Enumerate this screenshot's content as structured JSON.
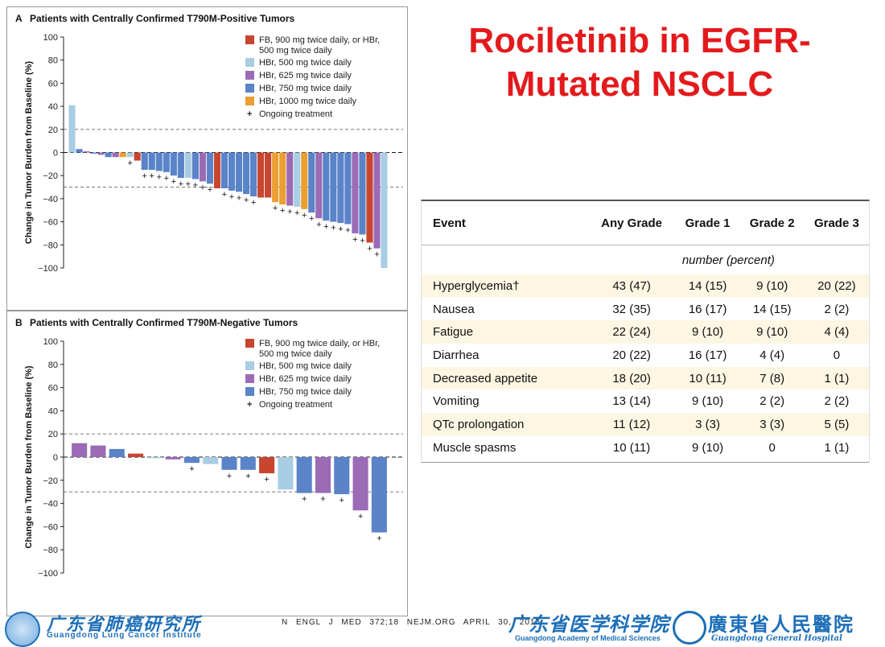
{
  "slide": {
    "title": "Rociletinib in EGFR-Mutated NSCLC"
  },
  "legend_colors": {
    "FB900": "#c8452f",
    "HBr500": "#a9cde3",
    "HBr625": "#9b6bb5",
    "HBr750": "#5a83c8",
    "HBr1000": "#eb9f32"
  },
  "chart_data": [
    {
      "type": "bar",
      "panel_letter": "A",
      "title": "Patients with Centrally Confirmed T790M-Positive Tumors",
      "ylabel": "Change in Tumor Burden from Baseline (%)",
      "ylim": [
        -100,
        100
      ],
      "yticks": [
        "100",
        "80",
        "60",
        "40",
        "20",
        "0",
        "−20",
        "−40",
        "−60",
        "−80",
        "−100"
      ],
      "reference_lines": [
        20,
        -30
      ],
      "legend": [
        {
          "key": "FB900",
          "label": "FB, 900 mg twice daily, or HBr,",
          "label2": "500 mg twice daily"
        },
        {
          "key": "HBr500",
          "label": "HBr, 500 mg twice daily",
          "label2": ""
        },
        {
          "key": "HBr625",
          "label": "HBr, 625 mg twice daily",
          "label2": ""
        },
        {
          "key": "HBr750",
          "label": "HBr, 750 mg twice daily",
          "label2": ""
        },
        {
          "key": "HBr1000",
          "label": "HBr, 1000 mg twice daily",
          "label2": ""
        }
      ],
      "ongoing_label": "Ongoing treatment",
      "ongoing_symbol": "+",
      "bars": [
        {
          "value": 41,
          "group": "HBr500",
          "ongoing": false
        },
        {
          "value": 3,
          "group": "HBr750",
          "ongoing": false
        },
        {
          "value": 1,
          "group": "HBr625",
          "ongoing": false
        },
        {
          "value": -1,
          "group": "HBr750",
          "ongoing": false
        },
        {
          "value": -2,
          "group": "HBr625",
          "ongoing": false
        },
        {
          "value": -4,
          "group": "HBr750",
          "ongoing": false
        },
        {
          "value": -4,
          "group": "HBr625",
          "ongoing": false
        },
        {
          "value": -4,
          "group": "HBr1000",
          "ongoing": false
        },
        {
          "value": -4,
          "group": "HBr500",
          "ongoing": true
        },
        {
          "value": -7,
          "group": "FB900",
          "ongoing": false
        },
        {
          "value": -15,
          "group": "HBr750",
          "ongoing": true
        },
        {
          "value": -15,
          "group": "HBr750",
          "ongoing": true
        },
        {
          "value": -16,
          "group": "HBr750",
          "ongoing": true
        },
        {
          "value": -17,
          "group": "HBr750",
          "ongoing": true
        },
        {
          "value": -20,
          "group": "HBr750",
          "ongoing": true
        },
        {
          "value": -22,
          "group": "HBr750",
          "ongoing": true
        },
        {
          "value": -22,
          "group": "HBr500",
          "ongoing": true
        },
        {
          "value": -23,
          "group": "HBr750",
          "ongoing": true
        },
        {
          "value": -25,
          "group": "HBr625",
          "ongoing": true
        },
        {
          "value": -27,
          "group": "HBr750",
          "ongoing": true
        },
        {
          "value": -31,
          "group": "FB900",
          "ongoing": false
        },
        {
          "value": -31,
          "group": "HBr750",
          "ongoing": true
        },
        {
          "value": -33,
          "group": "HBr750",
          "ongoing": true
        },
        {
          "value": -34,
          "group": "HBr750",
          "ongoing": true
        },
        {
          "value": -36,
          "group": "HBr750",
          "ongoing": true
        },
        {
          "value": -38,
          "group": "HBr750",
          "ongoing": true
        },
        {
          "value": -39,
          "group": "FB900",
          "ongoing": false
        },
        {
          "value": -39,
          "group": "FB900",
          "ongoing": false
        },
        {
          "value": -43,
          "group": "HBr1000",
          "ongoing": true
        },
        {
          "value": -45,
          "group": "HBr1000",
          "ongoing": true
        },
        {
          "value": -46,
          "group": "HBr625",
          "ongoing": true
        },
        {
          "value": -47,
          "group": "HBr500",
          "ongoing": true
        },
        {
          "value": -49,
          "group": "HBr1000",
          "ongoing": true
        },
        {
          "value": -52,
          "group": "HBr750",
          "ongoing": true
        },
        {
          "value": -57,
          "group": "HBr625",
          "ongoing": true
        },
        {
          "value": -59,
          "group": "HBr750",
          "ongoing": true
        },
        {
          "value": -60,
          "group": "HBr750",
          "ongoing": true
        },
        {
          "value": -61,
          "group": "HBr750",
          "ongoing": true
        },
        {
          "value": -62,
          "group": "HBr750",
          "ongoing": true
        },
        {
          "value": -70,
          "group": "HBr625",
          "ongoing": true
        },
        {
          "value": -71,
          "group": "HBr750",
          "ongoing": true
        },
        {
          "value": -78,
          "group": "FB900",
          "ongoing": true
        },
        {
          "value": -83,
          "group": "HBr625",
          "ongoing": true
        },
        {
          "value": -100,
          "group": "HBr500",
          "ongoing": false
        }
      ]
    },
    {
      "type": "bar",
      "panel_letter": "B",
      "title": "Patients with Centrally Confirmed T790M-Negative Tumors",
      "ylabel": "Change in Tumor Burden from Baseline (%)",
      "ylim": [
        -100,
        100
      ],
      "yticks": [
        "100",
        "80",
        "60",
        "40",
        "20",
        "0",
        "−20",
        "−40",
        "−60",
        "−80",
        "−100"
      ],
      "reference_lines": [
        20,
        -30
      ],
      "legend": [
        {
          "key": "FB900",
          "label": "FB, 900 mg twice daily, or HBr,",
          "label2": "500 mg twice daily"
        },
        {
          "key": "HBr500",
          "label": "HBr, 500 mg twice daily",
          "label2": ""
        },
        {
          "key": "HBr625",
          "label": "HBr, 625 mg twice daily",
          "label2": ""
        },
        {
          "key": "HBr750",
          "label": "HBr, 750 mg twice daily",
          "label2": ""
        }
      ],
      "ongoing_label": "Ongoing treatment",
      "ongoing_symbol": "+",
      "bars": [
        {
          "value": 12,
          "group": "HBr625",
          "ongoing": false
        },
        {
          "value": 10,
          "group": "HBr625",
          "ongoing": false
        },
        {
          "value": 7,
          "group": "HBr750",
          "ongoing": false
        },
        {
          "value": 3,
          "group": "FB900",
          "ongoing": false
        },
        {
          "value": -1,
          "group": "HBr500",
          "ongoing": false
        },
        {
          "value": -2,
          "group": "HBr625",
          "ongoing": false
        },
        {
          "value": -5,
          "group": "HBr750",
          "ongoing": true
        },
        {
          "value": -6,
          "group": "HBr500",
          "ongoing": false
        },
        {
          "value": -11,
          "group": "HBr750",
          "ongoing": true
        },
        {
          "value": -11,
          "group": "HBr750",
          "ongoing": true
        },
        {
          "value": -14,
          "group": "FB900",
          "ongoing": true
        },
        {
          "value": -28,
          "group": "HBr500",
          "ongoing": false
        },
        {
          "value": -31,
          "group": "HBr750",
          "ongoing": true
        },
        {
          "value": -31,
          "group": "HBr625",
          "ongoing": true
        },
        {
          "value": -32,
          "group": "HBr750",
          "ongoing": true
        },
        {
          "value": -46,
          "group": "HBr625",
          "ongoing": true
        },
        {
          "value": -65,
          "group": "HBr750",
          "ongoing": true
        }
      ]
    }
  ],
  "table": {
    "headers": [
      "Event",
      "Any Grade",
      "Grade 1",
      "Grade 2",
      "Grade 3"
    ],
    "subheader": "number (percent)",
    "rows": [
      [
        "Hyperglycemia†",
        "43 (47)",
        "14 (15)",
        "9 (10)",
        "20 (22)"
      ],
      [
        "Nausea",
        "32 (35)",
        "16 (17)",
        "14 (15)",
        "2 (2)"
      ],
      [
        "Fatigue",
        "22 (24)",
        "9 (10)",
        "9 (10)",
        "4 (4)"
      ],
      [
        "Diarrhea",
        "20 (22)",
        "16 (17)",
        "4 (4)",
        "0"
      ],
      [
        "Decreased appetite",
        "18 (20)",
        "10 (11)",
        "7 (8)",
        "1 (1)"
      ],
      [
        "Vomiting",
        "13 (14)",
        "9 (10)",
        "2 (2)",
        "2 (2)"
      ],
      [
        "QTc prolongation",
        "11 (12)",
        "3 (3)",
        "3 (3)",
        "5 (5)"
      ],
      [
        "Muscle spasms",
        "10 (11)",
        "9 (10)",
        "0",
        "1 (1)"
      ]
    ]
  },
  "footer": {
    "left_cn": "广东省肺癌研究所",
    "left_en": "Guangdong Lung Cancer Institute",
    "citation": "N ENGL J MED 372;18   NEJM.ORG   APRIL 30, 2015",
    "mid_cn": "广东省医学科学院",
    "mid_en": "Guangdong Academy of Medical Sciences",
    "right_cn": "廣東省人民醫院",
    "right_en": "Guangdong General Hospital"
  }
}
